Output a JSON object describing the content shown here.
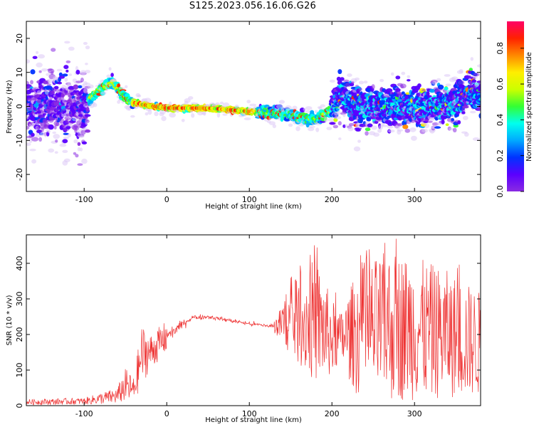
{
  "title": "S125.2023.056.16.06.G26",
  "colors": {
    "snr_line": "#ee3333",
    "colormap": [
      "#ffffff",
      "#dcc8f5",
      "#8a2be2",
      "#5a00ff",
      "#0033ff",
      "#00aaff",
      "#00ffee",
      "#33ff33",
      "#ccff00",
      "#ffee00",
      "#ff8800",
      "#ff2200",
      "#ff0066"
    ]
  },
  "chart_data": [
    {
      "type": "heatmap",
      "xlabel": "Height of straight line (km)",
      "ylabel": "Frequency (Hz)",
      "xlim": [
        -170,
        380
      ],
      "ylim": [
        -25,
        25
      ],
      "xticks": [
        -100,
        0,
        100,
        200,
        300
      ],
      "yticks": [
        -20,
        -10,
        0,
        10,
        20
      ],
      "colorbar": {
        "label": "Normalized spectral amplitude",
        "range": [
          0,
          0.95
        ],
        "ticks": [
          "0.0",
          "0.2",
          "0.4",
          "0.6",
          "0.8"
        ]
      },
      "ridge": [
        {
          "x": -170,
          "y": 0
        },
        {
          "x": -100,
          "y": 0
        },
        {
          "x": -90,
          "y": 3
        },
        {
          "x": -75,
          "y": 6
        },
        {
          "x": -65,
          "y": 7
        },
        {
          "x": -55,
          "y": 4
        },
        {
          "x": -45,
          "y": 1.5
        },
        {
          "x": -30,
          "y": 0.5
        },
        {
          "x": 0,
          "y": -0.5
        },
        {
          "x": 50,
          "y": -0.5
        },
        {
          "x": 100,
          "y": -1.5
        },
        {
          "x": 130,
          "y": -2
        },
        {
          "x": 150,
          "y": -2.5
        },
        {
          "x": 180,
          "y": -4
        },
        {
          "x": 200,
          "y": -1
        },
        {
          "x": 210,
          "y": 3
        },
        {
          "x": 230,
          "y": 0
        },
        {
          "x": 260,
          "y": 0
        },
        {
          "x": 300,
          "y": 0
        },
        {
          "x": 350,
          "y": 1
        },
        {
          "x": 370,
          "y": 5
        },
        {
          "x": 380,
          "y": 2
        }
      ]
    },
    {
      "type": "line",
      "xlabel": "Height of straight line (km)",
      "ylabel": "SNR (10 * v/v)",
      "xlim": [
        -170,
        380
      ],
      "ylim": [
        0,
        480
      ],
      "xticks": [
        -100,
        0,
        100,
        200,
        300
      ],
      "yticks": [
        0,
        100,
        200,
        300,
        400
      ],
      "envelope": [
        {
          "x": -170,
          "lo": 2,
          "hi": 18
        },
        {
          "x": -100,
          "lo": 3,
          "hi": 22
        },
        {
          "x": -60,
          "lo": 5,
          "hi": 50
        },
        {
          "x": -50,
          "lo": 10,
          "hi": 105
        },
        {
          "x": -40,
          "lo": 5,
          "hi": 80
        },
        {
          "x": -30,
          "lo": 60,
          "hi": 230
        },
        {
          "x": -20,
          "lo": 100,
          "hi": 200
        },
        {
          "x": 0,
          "lo": 150,
          "hi": 240
        },
        {
          "x": 20,
          "lo": 200,
          "hi": 260
        },
        {
          "x": 30,
          "lo": 225,
          "hi": 270
        },
        {
          "x": 50,
          "lo": 235,
          "hi": 265
        },
        {
          "x": 100,
          "lo": 215,
          "hi": 245
        },
        {
          "x": 130,
          "lo": 205,
          "hi": 240
        },
        {
          "x": 150,
          "lo": 140,
          "hi": 330
        },
        {
          "x": 180,
          "lo": 60,
          "hi": 420
        },
        {
          "x": 200,
          "lo": 80,
          "hi": 300
        },
        {
          "x": 210,
          "lo": 120,
          "hi": 260
        },
        {
          "x": 230,
          "lo": 30,
          "hi": 380
        },
        {
          "x": 270,
          "lo": 10,
          "hi": 440
        },
        {
          "x": 300,
          "lo": 15,
          "hi": 420
        },
        {
          "x": 340,
          "lo": 20,
          "hi": 380
        },
        {
          "x": 380,
          "lo": 25,
          "hi": 320
        }
      ]
    }
  ]
}
